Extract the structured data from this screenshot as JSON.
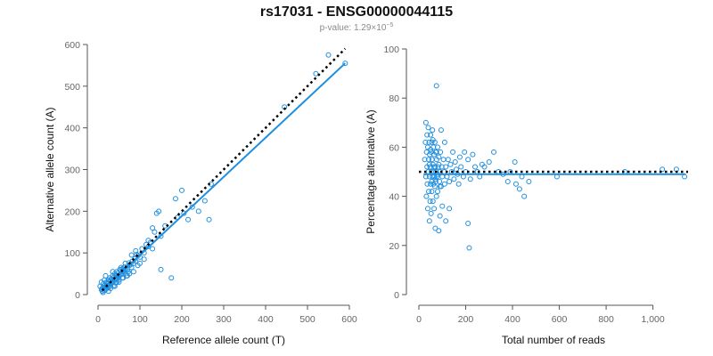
{
  "header": {
    "title": "rs17031 - ENSG00000044115",
    "pvalue_prefix": "p-value: 1.29×10",
    "pvalue_exponent": "−5"
  },
  "colors": {
    "points": "#1f8fe0",
    "fit_line": "#1f8fe0",
    "reference_line": "#000000"
  },
  "chart_data": [
    {
      "type": "scatter",
      "xlabel": "Reference allele count (T)",
      "ylabel": "Alternative allele count (A)",
      "xlim": [
        0,
        600
      ],
      "ylim": [
        0,
        600
      ],
      "xticks": [
        0,
        100,
        200,
        300,
        400,
        500,
        600
      ],
      "yticks": [
        0,
        100,
        200,
        300,
        400,
        500,
        600
      ],
      "points": [
        [
          5,
          20
        ],
        [
          8,
          30
        ],
        [
          10,
          15
        ],
        [
          12,
          25
        ],
        [
          15,
          10
        ],
        [
          15,
          35
        ],
        [
          18,
          45
        ],
        [
          20,
          22
        ],
        [
          20,
          30
        ],
        [
          22,
          28
        ],
        [
          25,
          18
        ],
        [
          25,
          35
        ],
        [
          28,
          40
        ],
        [
          30,
          20
        ],
        [
          30,
          25
        ],
        [
          32,
          38
        ],
        [
          35,
          30
        ],
        [
          35,
          45
        ],
        [
          38,
          22
        ],
        [
          40,
          35
        ],
        [
          40,
          50
        ],
        [
          42,
          28
        ],
        [
          45,
          38
        ],
        [
          45,
          55
        ],
        [
          48,
          42
        ],
        [
          50,
          30
        ],
        [
          50,
          45
        ],
        [
          52,
          60
        ],
        [
          55,
          48
        ],
        [
          58,
          40
        ],
        [
          60,
          55
        ],
        [
          62,
          65
        ],
        [
          65,
          50
        ],
        [
          68,
          45
        ],
        [
          70,
          60
        ],
        [
          72,
          55
        ],
        [
          75,
          70
        ],
        [
          80,
          65
        ],
        [
          85,
          75
        ],
        [
          90,
          80
        ],
        [
          95,
          70
        ],
        [
          100,
          90
        ],
        [
          105,
          110
        ],
        [
          110,
          100
        ],
        [
          115,
          120
        ],
        [
          120,
          130
        ],
        [
          125,
          125
        ],
        [
          130,
          160
        ],
        [
          135,
          150
        ],
        [
          140,
          195
        ],
        [
          145,
          200
        ],
        [
          150,
          60
        ],
        [
          160,
          165
        ],
        [
          175,
          40
        ],
        [
          185,
          230
        ],
        [
          190,
          185
        ],
        [
          200,
          250
        ],
        [
          205,
          195
        ],
        [
          215,
          180
        ],
        [
          225,
          210
        ],
        [
          240,
          200
        ],
        [
          255,
          225
        ],
        [
          265,
          180
        ],
        [
          270,
          265
        ],
        [
          445,
          450
        ],
        [
          520,
          530
        ],
        [
          550,
          575
        ],
        [
          590,
          555
        ],
        [
          12,
          5
        ],
        [
          18,
          12
        ],
        [
          25,
          8
        ],
        [
          30,
          15
        ],
        [
          35,
          55
        ],
        [
          40,
          20
        ],
        [
          45,
          30
        ],
        [
          50,
          35
        ],
        [
          55,
          65
        ],
        [
          60,
          40
        ],
        [
          65,
          75
        ],
        [
          70,
          45
        ],
        [
          75,
          50
        ],
        [
          80,
          95
        ],
        [
          85,
          55
        ],
        [
          90,
          105
        ],
        [
          100,
          75
        ],
        [
          110,
          85
        ],
        [
          120,
          115
        ],
        [
          130,
          110
        ],
        [
          150,
          140
        ],
        [
          15,
          18
        ],
        [
          22,
          20
        ],
        [
          28,
          32
        ],
        [
          32,
          28
        ],
        [
          38,
          42
        ],
        [
          42,
          40
        ],
        [
          48,
          52
        ],
        [
          52,
          48
        ],
        [
          58,
          62
        ],
        [
          62,
          58
        ],
        [
          8,
          12
        ],
        [
          10,
          8
        ],
        [
          14,
          16
        ],
        [
          16,
          22
        ],
        [
          20,
          14
        ],
        [
          24,
          26
        ],
        [
          26,
          20
        ],
        [
          34,
          36
        ],
        [
          36,
          32
        ],
        [
          44,
          46
        ],
        [
          46,
          44
        ],
        [
          54,
          56
        ],
        [
          56,
          50
        ],
        [
          64,
          66
        ],
        [
          66,
          60
        ],
        [
          74,
          76
        ],
        [
          78,
          72
        ],
        [
          82,
          80
        ],
        [
          88,
          86
        ],
        [
          92,
          96
        ],
        [
          96,
          94
        ]
      ],
      "fit_line": [
        [
          10,
          10
        ],
        [
          590,
          555
        ]
      ],
      "reference_line": [
        [
          10,
          10
        ],
        [
          590,
          590
        ]
      ]
    },
    {
      "type": "scatter",
      "xlabel": "Total number of reads",
      "ylabel": "Percentage alternative (A)",
      "xlim": [
        0,
        1150
      ],
      "ylim": [
        0,
        100
      ],
      "xticks": [
        0,
        200,
        400,
        600,
        800,
        1000
      ],
      "xtick_labels": [
        "0",
        "200",
        "400",
        "600",
        "800",
        "1,000"
      ],
      "yticks": [
        0,
        20,
        40,
        60,
        80,
        100
      ],
      "points": [
        [
          25,
          55
        ],
        [
          28,
          62
        ],
        [
          30,
          48
        ],
        [
          30,
          70
        ],
        [
          32,
          40
        ],
        [
          33,
          58
        ],
        [
          35,
          52
        ],
        [
          35,
          65
        ],
        [
          36,
          45
        ],
        [
          38,
          60
        ],
        [
          38,
          35
        ],
        [
          40,
          50
        ],
        [
          40,
          68
        ],
        [
          42,
          55
        ],
        [
          42,
          42
        ],
        [
          44,
          62
        ],
        [
          45,
          48
        ],
        [
          45,
          30
        ],
        [
          46,
          57
        ],
        [
          48,
          52
        ],
        [
          48,
          38
        ],
        [
          50,
          65
        ],
        [
          50,
          45
        ],
        [
          52,
          58
        ],
        [
          52,
          33
        ],
        [
          54,
          50
        ],
        [
          55,
          62
        ],
        [
          55,
          42
        ],
        [
          56,
          55
        ],
        [
          58,
          48
        ],
        [
          58,
          67
        ],
        [
          60,
          53
        ],
        [
          60,
          38
        ],
        [
          62,
          60
        ],
        [
          62,
          45
        ],
        [
          64,
          50
        ],
        [
          65,
          57
        ],
        [
          65,
          35
        ],
        [
          66,
          48
        ],
        [
          68,
          62
        ],
        [
          68,
          44
        ],
        [
          70,
          52
        ],
        [
          70,
          27
        ],
        [
          72,
          58
        ],
        [
          72,
          46
        ],
        [
          74,
          50
        ],
        [
          75,
          85
        ],
        [
          75,
          40
        ],
        [
          76,
          55
        ],
        [
          78,
          48
        ],
        [
          80,
          60
        ],
        [
          80,
          42
        ],
        [
          82,
          52
        ],
        [
          85,
          56
        ],
        [
          85,
          26
        ],
        [
          88,
          46
        ],
        [
          90,
          50
        ],
        [
          90,
          32
        ],
        [
          92,
          58
        ],
        [
          95,
          44
        ],
        [
          95,
          67
        ],
        [
          98,
          52
        ],
        [
          100,
          48
        ],
        [
          100,
          36
        ],
        [
          105,
          55
        ],
        [
          108,
          50
        ],
        [
          110,
          45
        ],
        [
          110,
          62
        ],
        [
          115,
          52
        ],
        [
          115,
          30
        ],
        [
          120,
          48
        ],
        [
          125,
          55
        ],
        [
          130,
          46
        ],
        [
          130,
          35
        ],
        [
          135,
          53
        ],
        [
          140,
          50
        ],
        [
          145,
          58
        ],
        [
          150,
          47
        ],
        [
          155,
          54
        ],
        [
          160,
          51
        ],
        [
          165,
          49
        ],
        [
          170,
          45
        ],
        [
          175,
          56
        ],
        [
          180,
          52
        ],
        [
          190,
          48
        ],
        [
          195,
          58
        ],
        [
          200,
          50
        ],
        [
          210,
          55
        ],
        [
          210,
          29
        ],
        [
          215,
          19
        ],
        [
          220,
          47
        ],
        [
          230,
          57
        ],
        [
          240,
          52
        ],
        [
          250,
          50
        ],
        [
          260,
          48
        ],
        [
          270,
          53
        ],
        [
          280,
          52
        ],
        [
          300,
          54
        ],
        [
          320,
          58
        ],
        [
          340,
          50
        ],
        [
          360,
          49
        ],
        [
          380,
          46
        ],
        [
          390,
          50
        ],
        [
          410,
          54
        ],
        [
          415,
          45
        ],
        [
          430,
          43
        ],
        [
          440,
          48
        ],
        [
          450,
          40
        ],
        [
          470,
          46
        ],
        [
          590,
          48
        ],
        [
          880,
          50
        ],
        [
          1040,
          51
        ],
        [
          1100,
          51
        ],
        [
          1135,
          48
        ],
        [
          45,
          53
        ],
        [
          50,
          59
        ],
        [
          55,
          46
        ],
        [
          60,
          63
        ],
        [
          65,
          52
        ],
        [
          70,
          47
        ],
        [
          75,
          58
        ],
        [
          80,
          49
        ],
        [
          85,
          53
        ],
        [
          90,
          44
        ]
      ],
      "fit_line": [
        [
          20,
          49
        ],
        [
          1140,
          49
        ]
      ],
      "reference_line": [
        [
          0,
          50
        ],
        [
          1150,
          50
        ]
      ]
    }
  ]
}
